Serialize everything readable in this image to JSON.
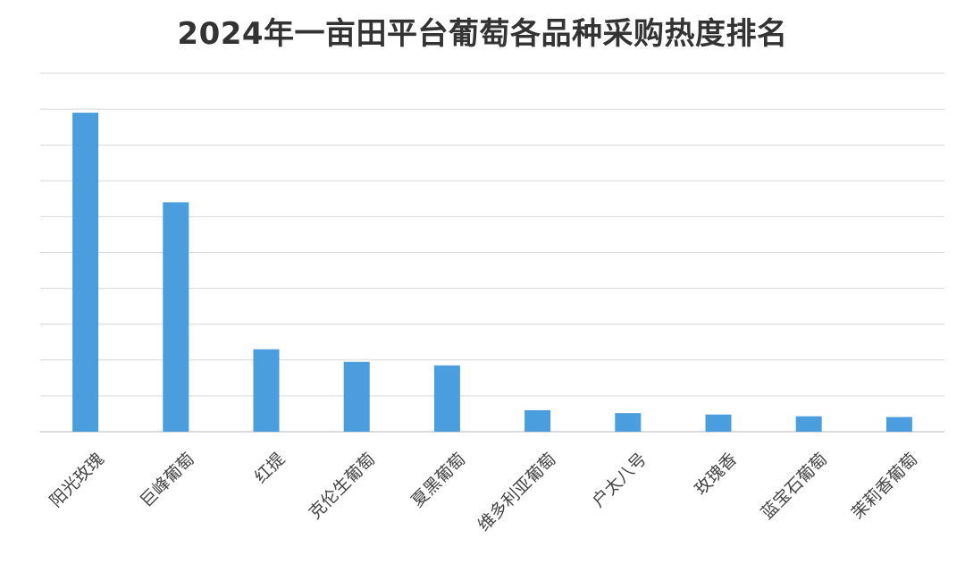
{
  "chart_data": {
    "type": "bar",
    "title": "2024年一亩田平台葡萄各品种采购热度排名",
    "categories": [
      "阳光玫瑰",
      "巨峰葡萄",
      "红提",
      "克伦生葡萄",
      "夏黑葡萄",
      "维多利亚葡萄",
      "户太八号",
      "玫瑰香",
      "蓝宝石葡萄",
      "茉莉香葡萄"
    ],
    "series": [
      {
        "values": [
          8.9,
          6.4,
          2.3,
          1.95,
          1.85,
          0.6,
          0.52,
          0.48,
          0.43,
          0.41
        ],
        "color": "#4a9ede"
      }
    ],
    "ylim": [
      0,
      10
    ],
    "gridlines": 10,
    "grid": true,
    "y_tick_labels_shown": false,
    "legend": "none",
    "xlabel": "",
    "ylabel": ""
  }
}
